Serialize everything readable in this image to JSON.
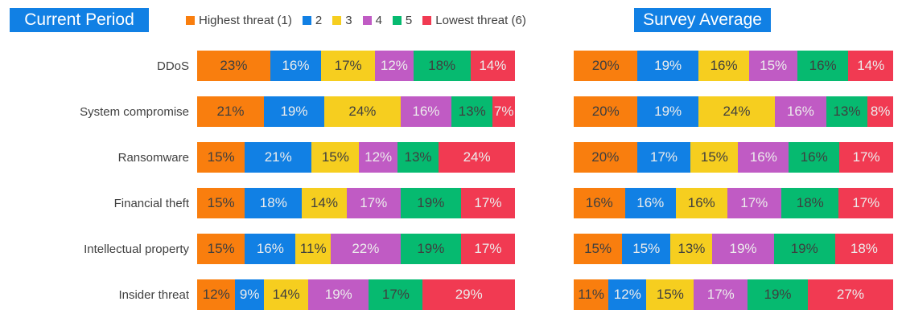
{
  "header": {
    "left_title": "Current Period",
    "right_title": "Survey Average",
    "title_bg": "#1180E4",
    "title_text_color": "#FFFFFF"
  },
  "palette": [
    {
      "name": "Highest threat (1)",
      "color": "#F97E0E",
      "text_color": "#3F3F3F"
    },
    {
      "name": "2",
      "color": "#1180E4",
      "text_color": "#ECECEC"
    },
    {
      "name": "3",
      "color": "#F6CE1F",
      "text_color": "#3F3F3F"
    },
    {
      "name": "4",
      "color": "#C05BC4",
      "text_color": "#ECECEC"
    },
    {
      "name": "5",
      "color": "#06BA70",
      "text_color": "#3F3F3F"
    },
    {
      "name": "Lowest threat (6)",
      "color": "#F13A52",
      "text_color": "#ECECEC"
    }
  ],
  "legend": {
    "items": [
      "Highest threat (1)",
      "2",
      "3",
      "4",
      "5",
      "Lowest threat (6)"
    ],
    "text_color": "#404040"
  },
  "chart_data": [
    {
      "type": "bar",
      "stacked": true,
      "orientation": "horizontal",
      "title": "Current Period",
      "unit": "%",
      "xlim": [
        0,
        100
      ],
      "show_category_labels": true,
      "legend_position": "top",
      "grid": false,
      "categories": [
        "DDoS",
        "System compromise",
        "Ransomware",
        "Financial theft",
        "Intellectual property",
        "Insider threat"
      ],
      "series": [
        {
          "name": "Highest threat (1)",
          "values": [
            23,
            21,
            15,
            15,
            15,
            12
          ]
        },
        {
          "name": "2",
          "values": [
            16,
            19,
            21,
            18,
            16,
            9
          ]
        },
        {
          "name": "3",
          "values": [
            17,
            24,
            15,
            14,
            11,
            14
          ]
        },
        {
          "name": "4",
          "values": [
            12,
            16,
            12,
            17,
            22,
            19
          ]
        },
        {
          "name": "5",
          "values": [
            18,
            13,
            13,
            19,
            19,
            17
          ]
        },
        {
          "name": "Lowest threat (6)",
          "values": [
            14,
            7,
            24,
            17,
            17,
            29
          ]
        }
      ]
    },
    {
      "type": "bar",
      "stacked": true,
      "orientation": "horizontal",
      "title": "Survey Average",
      "unit": "%",
      "xlim": [
        0,
        100
      ],
      "show_category_labels": false,
      "legend_position": "top",
      "grid": false,
      "categories": [
        "DDoS",
        "System compromise",
        "Ransomware",
        "Financial theft",
        "Intellectual property",
        "Insider threat"
      ],
      "series": [
        {
          "name": "Highest threat (1)",
          "values": [
            20,
            20,
            20,
            16,
            15,
            11
          ]
        },
        {
          "name": "2",
          "values": [
            19,
            19,
            17,
            16,
            15,
            12
          ]
        },
        {
          "name": "3",
          "values": [
            16,
            24,
            15,
            16,
            13,
            15
          ]
        },
        {
          "name": "4",
          "values": [
            15,
            16,
            16,
            17,
            19,
            17
          ]
        },
        {
          "name": "5",
          "values": [
            16,
            13,
            16,
            18,
            19,
            19
          ]
        },
        {
          "name": "Lowest threat (6)",
          "values": [
            14,
            8,
            17,
            17,
            18,
            27
          ]
        }
      ]
    }
  ]
}
